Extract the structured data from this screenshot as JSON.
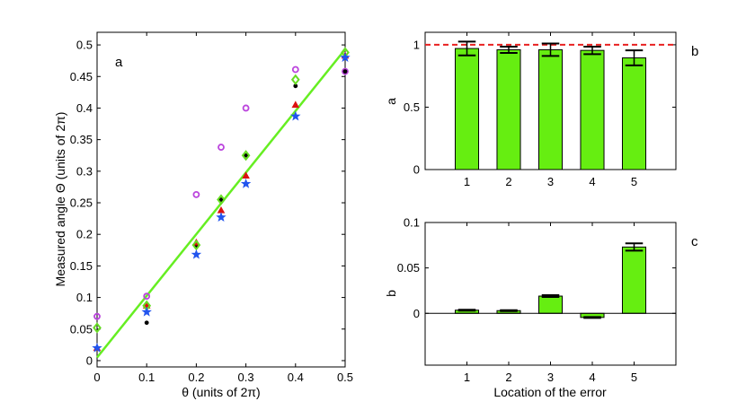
{
  "chart_data": [
    {
      "panel": "a",
      "type": "scatter",
      "panel_label": "a",
      "xlabel": "θ (units of 2π)",
      "ylabel": "Measured angle Θ (units of 2π)",
      "xlim": [
        0,
        0.5
      ],
      "ylim": [
        -0.01,
        0.52
      ],
      "xticks": [
        "0",
        "0.1",
        "0.2",
        "0.3",
        "0.4",
        "0.5"
      ],
      "xtick_values": [
        0,
        0.1,
        0.2,
        0.3,
        0.4,
        0.5
      ],
      "yticks": [
        "0",
        "0.05",
        "0.1",
        "0.15",
        "0.2",
        "0.25",
        "0.3",
        "0.35",
        "0.4",
        "0.45",
        "0.5"
      ],
      "ytick_values": [
        0,
        0.05,
        0.1,
        0.15,
        0.2,
        0.25,
        0.3,
        0.35,
        0.4,
        0.45,
        0.5
      ],
      "fit_line": {
        "x": [
          0,
          0.5
        ],
        "y": [
          0.005,
          0.493
        ],
        "color": "#66ee22"
      },
      "series": [
        {
          "name": "dots",
          "marker": "dot",
          "color": "#000000",
          "x": [
            0,
            0.1,
            0.2,
            0.25,
            0.3,
            0.4,
            0.5
          ],
          "y": [
            0.02,
            0.06,
            0.18,
            0.255,
            0.325,
            0.435,
            0.458
          ]
        },
        {
          "name": "circles",
          "marker": "circle",
          "color": "#bb44dd",
          "x": [
            0,
            0.1,
            0.2,
            0.25,
            0.3,
            0.4,
            0.5
          ],
          "y": [
            0.07,
            0.102,
            0.263,
            0.338,
            0.4,
            0.461,
            0.458
          ]
        },
        {
          "name": "triangles",
          "marker": "triangle",
          "color": "#dd1111",
          "x": [
            0,
            0.1,
            0.2,
            0.25,
            0.3,
            0.4,
            0.5
          ],
          "y": [
            0.02,
            0.087,
            0.187,
            0.238,
            0.293,
            0.405,
            0.483
          ]
        },
        {
          "name": "diamonds",
          "marker": "diamond",
          "color": "#66dd22",
          "x": [
            0,
            0.1,
            0.2,
            0.25,
            0.3,
            0.4,
            0.5
          ],
          "y": [
            0.052,
            0.087,
            0.183,
            0.255,
            0.325,
            0.445,
            0.488
          ]
        },
        {
          "name": "stars",
          "marker": "star",
          "color": "#2255ee",
          "x": [
            0,
            0.1,
            0.2,
            0.25,
            0.3,
            0.4,
            0.5
          ],
          "y": [
            0.02,
            0.077,
            0.168,
            0.227,
            0.28,
            0.387,
            0.48
          ]
        }
      ]
    },
    {
      "panel": "b",
      "type": "bar",
      "panel_label": "b",
      "xlabel": "",
      "ylabel": "a",
      "categories": [
        "1",
        "2",
        "3",
        "4",
        "5"
      ],
      "values": [
        0.97,
        0.96,
        0.96,
        0.955,
        0.895
      ],
      "errors": [
        0.055,
        0.025,
        0.05,
        0.03,
        0.06
      ],
      "ylim": [
        0,
        1.1
      ],
      "yticks": [
        "0",
        "0.5",
        "1"
      ],
      "ytick_values": [
        0,
        0.5,
        1
      ],
      "reference_line": {
        "y": 1,
        "color": "#e82020",
        "style": "dashed"
      },
      "bar_color": "#66ee11"
    },
    {
      "panel": "c",
      "type": "bar",
      "panel_label": "c",
      "xlabel": "Location of the error",
      "ylabel": "b",
      "categories": [
        "1",
        "2",
        "3",
        "4",
        "5"
      ],
      "values": [
        0.0035,
        0.003,
        0.019,
        -0.0045,
        0.073
      ],
      "errors": [
        0.0005,
        0.0005,
        0.001,
        0.0005,
        0.004
      ],
      "ylim": [
        -0.057,
        0.1
      ],
      "yticks": [
        "0",
        "0.05",
        "0.1"
      ],
      "ytick_values": [
        0,
        0.05,
        0.1
      ],
      "bar_color": "#66ee11"
    }
  ]
}
